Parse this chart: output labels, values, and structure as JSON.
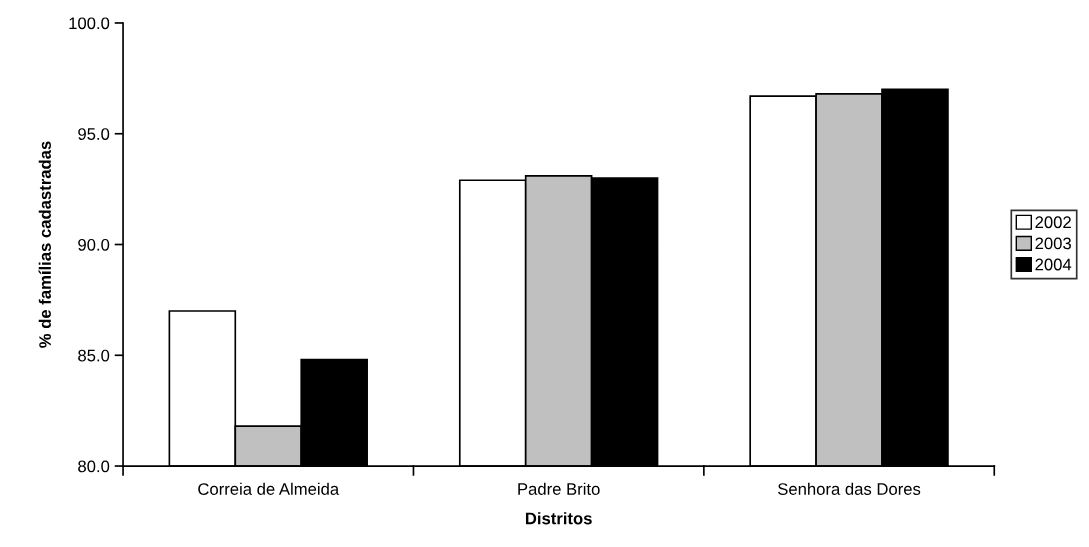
{
  "chart_data": {
    "type": "bar",
    "xlabel": "Distritos",
    "ylabel": "% de famílias cadastradas",
    "categories": [
      "Correia de Almeida",
      "Padre Brito",
      "Senhora das Dores"
    ],
    "series": [
      {
        "name": "2002",
        "color": "#ffffff",
        "values": [
          87.0,
          92.9,
          96.7
        ]
      },
      {
        "name": "2003",
        "color": "#c0c0c0",
        "values": [
          81.8,
          93.1,
          96.8
        ]
      },
      {
        "name": "2004",
        "color": "#000000",
        "values": [
          84.8,
          93.0,
          97.0
        ]
      }
    ],
    "ylim": [
      80,
      100
    ],
    "yticks": [
      {
        "value": 80,
        "label": "80.0"
      },
      {
        "value": 85,
        "label": "85.0"
      },
      {
        "value": 90,
        "label": "90.0"
      },
      {
        "value": 95,
        "label": "95.0"
      },
      {
        "value": 100,
        "label": "100.0"
      }
    ],
    "grid": false,
    "legend": "right"
  }
}
